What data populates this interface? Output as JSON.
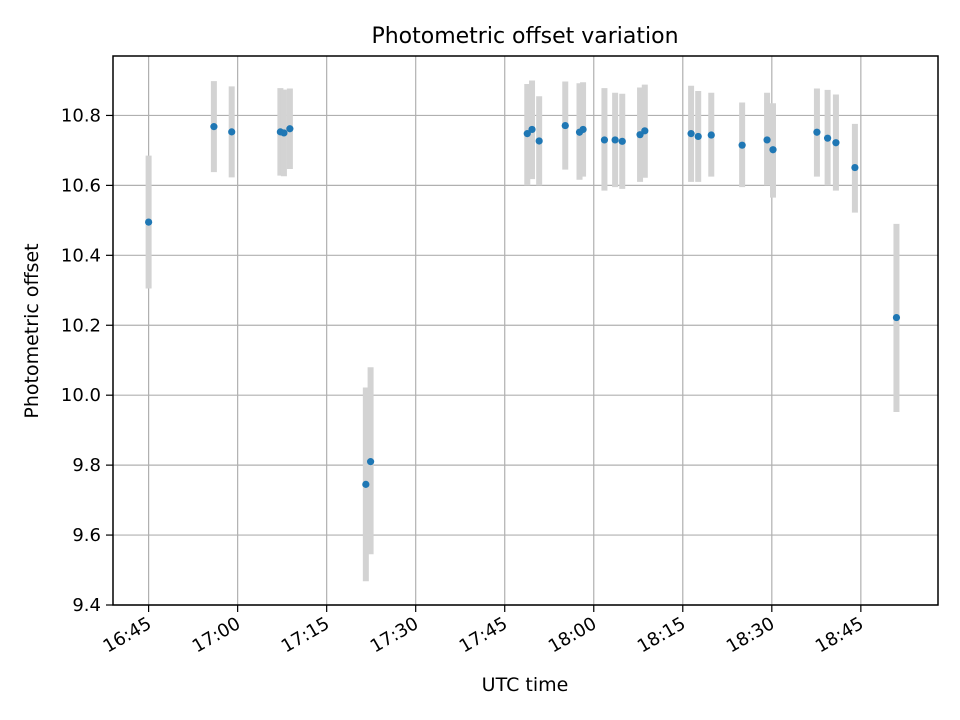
{
  "chart_data": {
    "type": "scatter",
    "title": "Photometric offset variation",
    "xlabel": "UTC time",
    "ylabel": "Photometric offset",
    "xlim": [
      "16:39",
      "18:58"
    ],
    "ylim": [
      9.4,
      10.97
    ],
    "x_ticks": [
      "16:45",
      "17:00",
      "17:15",
      "17:30",
      "17:45",
      "18:00",
      "18:15",
      "18:30",
      "18:45"
    ],
    "y_ticks": [
      "9.4",
      "9.6",
      "9.8",
      "10.0",
      "10.2",
      "10.4",
      "10.6",
      "10.8"
    ],
    "grid": true,
    "colors": {
      "points": "#1f77b4",
      "errorbars": "#d3d3d3",
      "grid": "#b0b0b0"
    },
    "series": [
      {
        "points": [
          {
            "t": "16:45:00",
            "y": 10.495,
            "lo": 10.305,
            "hi": 10.685
          },
          {
            "t": "16:56:00",
            "y": 10.768,
            "lo": 10.638,
            "hi": 10.898
          },
          {
            "t": "16:59:00",
            "y": 10.753,
            "lo": 10.623,
            "hi": 10.883
          },
          {
            "t": "17:07:12",
            "y": 10.753,
            "lo": 10.628,
            "hi": 10.878
          },
          {
            "t": "17:07:48",
            "y": 10.75,
            "lo": 10.626,
            "hi": 10.874
          },
          {
            "t": "17:08:48",
            "y": 10.762,
            "lo": 10.647,
            "hi": 10.877
          },
          {
            "t": "17:21:36",
            "y": 9.745,
            "lo": 9.468,
            "hi": 10.022
          },
          {
            "t": "17:22:24",
            "y": 9.81,
            "lo": 9.545,
            "hi": 10.08
          },
          {
            "t": "17:48:48",
            "y": 10.748,
            "lo": 10.6,
            "hi": 10.89
          },
          {
            "t": "17:49:36",
            "y": 10.76,
            "lo": 10.618,
            "hi": 10.9
          },
          {
            "t": "17:50:48",
            "y": 10.727,
            "lo": 10.6,
            "hi": 10.855
          },
          {
            "t": "17:55:12",
            "y": 10.771,
            "lo": 10.645,
            "hi": 10.897
          },
          {
            "t": "17:57:36",
            "y": 10.752,
            "lo": 10.616,
            "hi": 10.892
          },
          {
            "t": "17:58:12",
            "y": 10.76,
            "lo": 10.625,
            "hi": 10.895
          },
          {
            "t": "18:01:48",
            "y": 10.73,
            "lo": 10.585,
            "hi": 10.878
          },
          {
            "t": "18:03:36",
            "y": 10.73,
            "lo": 10.595,
            "hi": 10.865
          },
          {
            "t": "18:04:48",
            "y": 10.726,
            "lo": 10.59,
            "hi": 10.862
          },
          {
            "t": "18:07:48",
            "y": 10.745,
            "lo": 10.61,
            "hi": 10.88
          },
          {
            "t": "18:08:36",
            "y": 10.756,
            "lo": 10.622,
            "hi": 10.888
          },
          {
            "t": "18:16:24",
            "y": 10.748,
            "lo": 10.61,
            "hi": 10.885
          },
          {
            "t": "18:17:36",
            "y": 10.74,
            "lo": 10.61,
            "hi": 10.87
          },
          {
            "t": "18:19:48",
            "y": 10.744,
            "lo": 10.625,
            "hi": 10.865
          },
          {
            "t": "18:25:00",
            "y": 10.715,
            "lo": 10.595,
            "hi": 10.837
          },
          {
            "t": "18:29:12",
            "y": 10.73,
            "lo": 10.6,
            "hi": 10.865
          },
          {
            "t": "18:30:12",
            "y": 10.702,
            "lo": 10.565,
            "hi": 10.835
          },
          {
            "t": "18:37:36",
            "y": 10.752,
            "lo": 10.625,
            "hi": 10.877
          },
          {
            "t": "18:39:24",
            "y": 10.735,
            "lo": 10.6,
            "hi": 10.873
          },
          {
            "t": "18:40:48",
            "y": 10.722,
            "lo": 10.585,
            "hi": 10.86
          },
          {
            "t": "18:44:00",
            "y": 10.651,
            "lo": 10.522,
            "hi": 10.776
          },
          {
            "t": "18:51:00",
            "y": 10.222,
            "lo": 9.952,
            "hi": 10.49
          }
        ]
      }
    ]
  }
}
